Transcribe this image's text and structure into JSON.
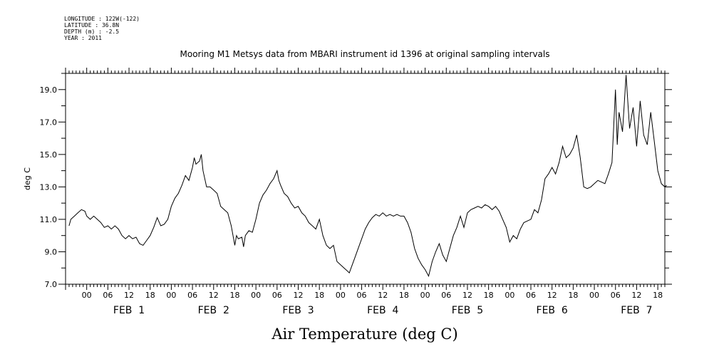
{
  "header": {
    "longitude": "LONGITUDE : 122W(-122)",
    "latitude": "LATITUDE : 36.8N",
    "depth": "DEPTH (m) : -2.5",
    "year": "YEAR : 2011"
  },
  "chart_data": {
    "type": "line",
    "title": "Mooring M1 Metsys data from MBARI instrument id 1396 at original sampling intervals",
    "xlabel": "Air Temperature (deg C)",
    "ylabel": "deg C",
    "ylim": [
      7.0,
      20.0
    ],
    "xlim_hours": [
      -6,
      164
    ],
    "y_ticks": [
      "7.0",
      "9.0",
      "11.0",
      "13.0",
      "15.0",
      "17.0",
      "19.0"
    ],
    "hour_labels": [
      "00",
      "06",
      "12",
      "18",
      "00",
      "06",
      "12",
      "18",
      "00",
      "06",
      "12",
      "18",
      "00",
      "06",
      "12",
      "18",
      "00",
      "06",
      "12",
      "18",
      "00",
      "06",
      "12",
      "18",
      "00",
      "06",
      "12",
      "18"
    ],
    "day_labels": [
      "FEB  1",
      "FEB  2",
      "FEB  3",
      "FEB  4",
      "FEB  5",
      "FEB  6",
      "FEB  7"
    ],
    "grid": false,
    "series": [
      {
        "values": [
          [
            -5,
            10.6
          ],
          [
            -4.5,
            11.0
          ],
          [
            -3.5,
            11.2
          ],
          [
            -2.5,
            11.4
          ],
          [
            -1.5,
            11.6
          ],
          [
            -0.5,
            11.5
          ],
          [
            0,
            11.2
          ],
          [
            1,
            11.0
          ],
          [
            2,
            11.2
          ],
          [
            3,
            11.0
          ],
          [
            4,
            10.8
          ],
          [
            5,
            10.5
          ],
          [
            6,
            10.6
          ],
          [
            7,
            10.4
          ],
          [
            8,
            10.6
          ],
          [
            9,
            10.4
          ],
          [
            10,
            10.0
          ],
          [
            11,
            9.8
          ],
          [
            12,
            10.0
          ],
          [
            13,
            9.8
          ],
          [
            14,
            9.9
          ],
          [
            15,
            9.5
          ],
          [
            16,
            9.4
          ],
          [
            17,
            9.7
          ],
          [
            18,
            10.0
          ],
          [
            19,
            10.5
          ],
          [
            20,
            11.1
          ],
          [
            21,
            10.6
          ],
          [
            22,
            10.7
          ],
          [
            23,
            11.0
          ],
          [
            24,
            11.8
          ],
          [
            25,
            12.3
          ],
          [
            26,
            12.6
          ],
          [
            27,
            13.1
          ],
          [
            28,
            13.7
          ],
          [
            29,
            13.4
          ],
          [
            30,
            14.2
          ],
          [
            30.5,
            14.8
          ],
          [
            31,
            14.4
          ],
          [
            32,
            14.6
          ],
          [
            32.5,
            15.0
          ],
          [
            33,
            14.0
          ],
          [
            34,
            13.0
          ],
          [
            35,
            13.0
          ],
          [
            36,
            12.8
          ],
          [
            37,
            12.6
          ],
          [
            38,
            11.8
          ],
          [
            39,
            11.6
          ],
          [
            40,
            11.4
          ],
          [
            41,
            10.6
          ],
          [
            42,
            9.4
          ],
          [
            42.5,
            10.0
          ],
          [
            43,
            9.8
          ],
          [
            44,
            9.9
          ],
          [
            44.5,
            9.3
          ],
          [
            45,
            10.0
          ],
          [
            46,
            10.3
          ],
          [
            47,
            10.2
          ],
          [
            48,
            11.0
          ],
          [
            49,
            12.0
          ],
          [
            50,
            12.5
          ],
          [
            51,
            12.8
          ],
          [
            52,
            13.2
          ],
          [
            53,
            13.5
          ],
          [
            54,
            14.0
          ],
          [
            54.5,
            13.4
          ],
          [
            55,
            13.1
          ],
          [
            56,
            12.6
          ],
          [
            57,
            12.4
          ],
          [
            58,
            12.0
          ],
          [
            59,
            11.7
          ],
          [
            60,
            11.8
          ],
          [
            61,
            11.4
          ],
          [
            62,
            11.2
          ],
          [
            63,
            10.8
          ],
          [
            64,
            10.6
          ],
          [
            65,
            10.4
          ],
          [
            66,
            11.0
          ],
          [
            67,
            10.0
          ],
          [
            68,
            9.4
          ],
          [
            69,
            9.2
          ],
          [
            70,
            9.4
          ],
          [
            71,
            8.4
          ],
          [
            72,
            8.2
          ],
          [
            73,
            8.0
          ],
          [
            74,
            7.8
          ],
          [
            74.5,
            7.7
          ],
          [
            75,
            8.0
          ],
          [
            76,
            8.6
          ],
          [
            77,
            9.2
          ],
          [
            78,
            9.8
          ],
          [
            79,
            10.4
          ],
          [
            80,
            10.8
          ],
          [
            81,
            11.1
          ],
          [
            82,
            11.3
          ],
          [
            83,
            11.2
          ],
          [
            84,
            11.4
          ],
          [
            85,
            11.2
          ],
          [
            86,
            11.3
          ],
          [
            87,
            11.2
          ],
          [
            88,
            11.3
          ],
          [
            89,
            11.2
          ],
          [
            90,
            11.2
          ],
          [
            91,
            10.8
          ],
          [
            92,
            10.2
          ],
          [
            93,
            9.2
          ],
          [
            94,
            8.6
          ],
          [
            95,
            8.2
          ],
          [
            96,
            7.9
          ],
          [
            97,
            7.5
          ],
          [
            98,
            8.4
          ],
          [
            99,
            9.0
          ],
          [
            100,
            9.5
          ],
          [
            101,
            8.8
          ],
          [
            102,
            8.4
          ],
          [
            103,
            9.2
          ],
          [
            104,
            10.0
          ],
          [
            105,
            10.5
          ],
          [
            106,
            11.2
          ],
          [
            107,
            10.5
          ],
          [
            108,
            11.4
          ],
          [
            109,
            11.6
          ],
          [
            110,
            11.7
          ],
          [
            111,
            11.8
          ],
          [
            112,
            11.7
          ],
          [
            113,
            11.9
          ],
          [
            114,
            11.8
          ],
          [
            115,
            11.6
          ],
          [
            116,
            11.8
          ],
          [
            117,
            11.5
          ],
          [
            118,
            11.0
          ],
          [
            119,
            10.5
          ],
          [
            120,
            9.6
          ],
          [
            121,
            10.0
          ],
          [
            122,
            9.8
          ],
          [
            123,
            10.4
          ],
          [
            124,
            10.8
          ],
          [
            125,
            10.9
          ],
          [
            126,
            11.0
          ],
          [
            127,
            11.6
          ],
          [
            128,
            11.4
          ],
          [
            129,
            12.2
          ],
          [
            130,
            13.5
          ],
          [
            131,
            13.8
          ],
          [
            132,
            14.2
          ],
          [
            133,
            13.8
          ],
          [
            134,
            14.5
          ],
          [
            135,
            15.5
          ],
          [
            136,
            14.8
          ],
          [
            137,
            15.0
          ],
          [
            138,
            15.4
          ],
          [
            139,
            16.2
          ],
          [
            140,
            14.8
          ],
          [
            141,
            13.0
          ],
          [
            142,
            12.9
          ],
          [
            143,
            13.0
          ],
          [
            144,
            13.2
          ],
          [
            145,
            13.4
          ],
          [
            146,
            13.3
          ],
          [
            147,
            13.2
          ],
          [
            148,
            13.8
          ],
          [
            149,
            14.5
          ],
          [
            150,
            19.0
          ],
          [
            150.5,
            15.6
          ],
          [
            151,
            17.6
          ],
          [
            152,
            16.4
          ],
          [
            153,
            19.9
          ],
          [
            154,
            16.6
          ],
          [
            155,
            17.9
          ],
          [
            156,
            15.5
          ],
          [
            157,
            18.3
          ],
          [
            158,
            16.2
          ],
          [
            159,
            15.6
          ],
          [
            160,
            17.6
          ],
          [
            161,
            15.8
          ],
          [
            162,
            14.0
          ],
          [
            163,
            13.2
          ],
          [
            164,
            13.0
          ],
          [
            164.5,
            13.1
          ]
        ]
      }
    ]
  }
}
